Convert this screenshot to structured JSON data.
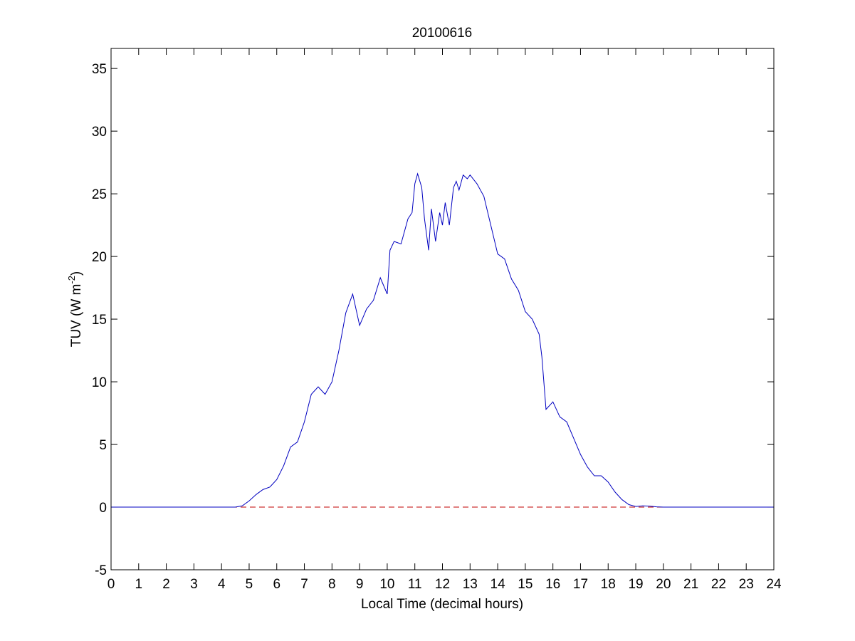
{
  "chart_data": {
    "type": "line",
    "title": "20100616",
    "xlabel": "Local Time (decimal hours)",
    "ylabel": [
      "TUV (W m",
      "-2",
      ")"
    ],
    "x": [
      0,
      4.5,
      4.75,
      5,
      5.25,
      5.5,
      5.75,
      6,
      6.25,
      6.5,
      6.75,
      7,
      7.25,
      7.5,
      7.75,
      8,
      8.25,
      8.5,
      8.75,
      9,
      9.25,
      9.5,
      9.75,
      10,
      10.1,
      10.25,
      10.5,
      10.75,
      10.9,
      11,
      11.1,
      11.25,
      11.35,
      11.5,
      11.6,
      11.75,
      11.9,
      12,
      12.1,
      12.25,
      12.4,
      12.5,
      12.6,
      12.75,
      12.9,
      13,
      13.25,
      13.5,
      13.75,
      14,
      14.25,
      14.5,
      14.75,
      15,
      15.25,
      15.5,
      15.6,
      15.75,
      16,
      16.25,
      16.5,
      16.75,
      17,
      17.25,
      17.5,
      17.75,
      18,
      18.25,
      18.5,
      18.75,
      19,
      19.25,
      19.5,
      19.75,
      20,
      24
    ],
    "series": [
      {
        "color": "#0000c0",
        "values": [
          0,
          0,
          0.1,
          0.5,
          1.0,
          1.4,
          1.6,
          2.2,
          3.3,
          4.8,
          5.2,
          6.8,
          9.0,
          9.6,
          9.0,
          10.0,
          12.5,
          15.5,
          17.0,
          14.5,
          15.8,
          16.5,
          18.3,
          17.0,
          20.5,
          21.2,
          21.0,
          23.0,
          23.5,
          25.8,
          26.6,
          25.5,
          23.0,
          20.5,
          23.8,
          21.2,
          23.5,
          22.5,
          24.3,
          22.5,
          25.5,
          26.0,
          25.3,
          26.5,
          26.2,
          26.5,
          25.8,
          24.8,
          22.5,
          20.2,
          19.8,
          18.2,
          17.3,
          15.6,
          15.0,
          13.8,
          12.0,
          7.8,
          8.4,
          7.2,
          6.8,
          5.5,
          4.2,
          3.2,
          2.5,
          2.5,
          2.0,
          1.2,
          0.6,
          0.2,
          0.05,
          0.1,
          0.08,
          0.02,
          0,
          0
        ]
      }
    ],
    "hline": {
      "value": 0,
      "color": "#c00000",
      "dashed": true
    },
    "xlim": [
      0,
      24
    ],
    "xticks": [
      0,
      1,
      2,
      3,
      4,
      5,
      6,
      7,
      8,
      9,
      10,
      11,
      12,
      13,
      14,
      15,
      16,
      17,
      18,
      19,
      20,
      21,
      22,
      23,
      24
    ],
    "ylim": [
      -5,
      36.6
    ],
    "yticks": [
      -5,
      0,
      5,
      10,
      15,
      20,
      25,
      30,
      35
    ]
  }
}
